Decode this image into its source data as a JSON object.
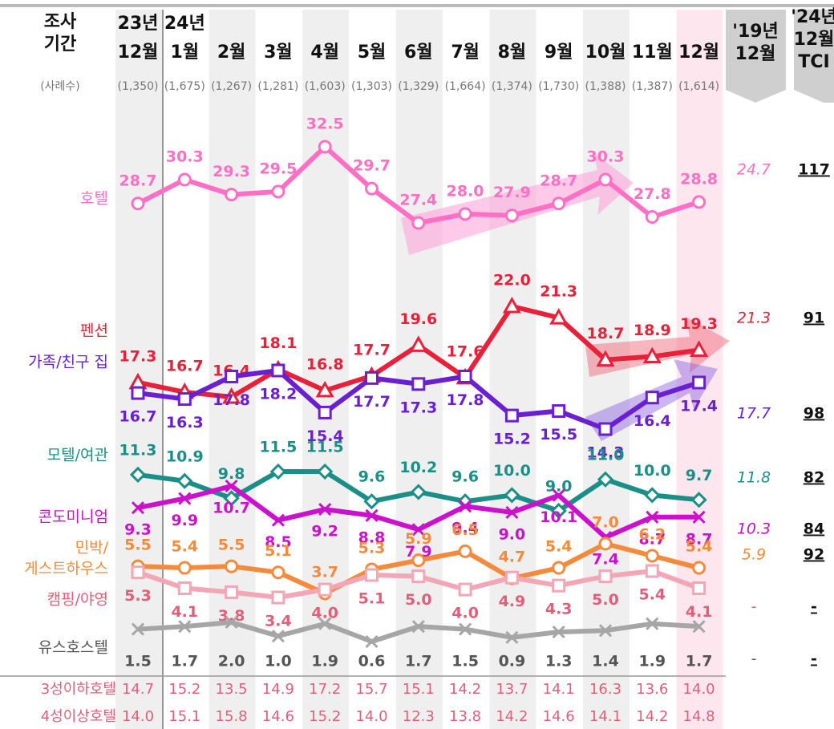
{
  "chart_data": {
    "type": "line",
    "header": "조사\n기간",
    "sample_label": "(사례수)",
    "categories": [
      "23년\n12월",
      "24년\n1월",
      "2월",
      "3월",
      "4월",
      "5월",
      "6월",
      "7월",
      "8월",
      "9월",
      "10월",
      "11월",
      "12월"
    ],
    "sample_sizes": [
      "(1,350)",
      "(1,675)",
      "(1,267)",
      "(1,281)",
      "(1,603)",
      "(1,303)",
      "(1,329)",
      "(1,664)",
      "(1,374)",
      "(1,730)",
      "(1,388)",
      "(1,387)",
      "(1,614)"
    ],
    "compare_headers": [
      "'19년\n12월",
      "'24년\n12월\nTCI"
    ],
    "series": [
      {
        "name": "호텔",
        "color": "#ff6fc4",
        "marker": "circle",
        "values": [
          28.7,
          30.3,
          29.3,
          29.5,
          32.5,
          29.7,
          27.4,
          28.0,
          27.9,
          28.7,
          30.3,
          27.8,
          28.8
        ],
        "value_labels": [
          "28.7",
          "30.3",
          "29.3",
          "29.5",
          "32.5",
          "29.7",
          "27.4",
          "28.0",
          "27.9",
          "28.7",
          "30.3",
          "27.8",
          "28.8"
        ],
        "prev": 24.7,
        "tci": 117
      },
      {
        "name": "펜션",
        "color": "#e8203a",
        "marker": "triangle",
        "values": [
          17.3,
          16.7,
          16.4,
          18.1,
          16.8,
          17.7,
          19.6,
          17.6,
          22.0,
          21.3,
          18.7,
          18.9,
          19.3
        ],
        "value_labels": [
          "17.3",
          "16.7",
          "16.4",
          "18.1",
          "16.8",
          "17.7",
          "19.6",
          "17.6",
          "22.0",
          "21.3",
          "18.7",
          "18.9",
          "19.3"
        ],
        "prev": 21.3,
        "tci": 91
      },
      {
        "name": "가족/친구 집",
        "color": "#6a1fd0",
        "marker": "square",
        "values": [
          16.7,
          16.3,
          17.8,
          18.2,
          15.4,
          17.7,
          17.3,
          17.8,
          15.2,
          15.5,
          14.3,
          16.4,
          17.4
        ],
        "value_labels": [
          "16.7",
          "16.3",
          "17.8",
          "18.2",
          "15.4",
          "17.7",
          "17.3",
          "17.8",
          "15.2",
          "15.5",
          "14.3",
          "16.4",
          "17.4"
        ],
        "prev": 17.7,
        "tci": 98
      },
      {
        "name": "모텔/여관",
        "color": "#1a8f88",
        "marker": "diamond",
        "values": [
          11.3,
          10.9,
          9.8,
          11.5,
          11.5,
          9.6,
          10.2,
          9.6,
          10.0,
          9.0,
          11.0,
          10.0,
          9.7
        ],
        "value_labels": [
          "11.3",
          "10.9",
          "9.8",
          "11.5",
          "11.5",
          "9.6",
          "10.2",
          "9.6",
          "10.0",
          "9.0",
          "11.0",
          "10.0",
          "9.7"
        ],
        "prev": 11.8,
        "tci": 82
      },
      {
        "name": "콘도미니엄",
        "color": "#cc11cc",
        "marker": "x",
        "values": [
          9.3,
          9.9,
          10.7,
          8.5,
          9.2,
          8.8,
          7.9,
          9.4,
          9.0,
          10.1,
          7.4,
          8.7,
          8.7
        ],
        "value_labels": [
          "9.3",
          "9.9",
          "10.7",
          "8.5",
          "9.2",
          "8.8",
          "7.9",
          "9.4",
          "9.0",
          "10.1",
          "7.4",
          "8.7",
          "8.7"
        ],
        "prev": 10.3,
        "tci": 84
      },
      {
        "name": "민박/\n게스트하우스",
        "color": "#f58a3c",
        "marker": "circle",
        "values": [
          5.5,
          5.4,
          5.5,
          5.1,
          3.7,
          5.3,
          5.9,
          6.5,
          4.7,
          5.4,
          7.0,
          6.2,
          5.4
        ],
        "value_labels": [
          "5.5",
          "5.4",
          "5.5",
          "5.1",
          "3.7",
          "5.3",
          "5.9",
          "6.5",
          "4.7",
          "5.4",
          "7.0",
          "6.2",
          "5.4"
        ],
        "prev": 5.9,
        "tci": 92
      },
      {
        "name": "캠핑/야영",
        "color": "#f2a6b6",
        "label_color": "#e0607a",
        "marker": "square",
        "values": [
          5.3,
          4.1,
          3.8,
          3.4,
          4.0,
          5.1,
          5.0,
          4.0,
          4.9,
          4.3,
          5.0,
          5.4,
          4.1
        ],
        "value_labels": [
          "5.3",
          "4.1",
          "3.8",
          "3.4",
          "4.0",
          "5.1",
          "5.0",
          "4.0",
          "4.9",
          "4.3",
          "5.0",
          "5.4",
          "4.1"
        ],
        "prev": "-",
        "tci": "-"
      },
      {
        "name": "유스호스텔",
        "color": "#a6a6a6",
        "label_color": "#555555",
        "marker": "x",
        "values": [
          1.5,
          1.7,
          2.0,
          1.0,
          1.9,
          0.6,
          1.7,
          1.5,
          0.9,
          1.3,
          1.4,
          1.9,
          1.7
        ],
        "value_labels": [
          "1.5",
          "1.7",
          "2.0",
          "1.0",
          "1.9",
          "0.6",
          "1.7",
          "1.5",
          "0.9",
          "1.3",
          "1.4",
          "1.9",
          "1.7"
        ],
        "prev": "-",
        "tci": "-"
      }
    ],
    "rows": [
      {
        "name": "3성이하호텔",
        "values": [
          14.7,
          15.2,
          13.5,
          14.9,
          17.2,
          15.7,
          15.1,
          14.2,
          13.7,
          14.1,
          16.3,
          13.6,
          14.0
        ],
        "value_labels": [
          "14.7",
          "15.2",
          "13.5",
          "14.9",
          "17.2",
          "15.7",
          "15.1",
          "14.2",
          "13.7",
          "14.1",
          "16.3",
          "13.6",
          "14.0"
        ]
      },
      {
        "name": "4성이상호텔",
        "values": [
          14.0,
          15.1,
          15.8,
          14.6,
          15.2,
          14.0,
          12.3,
          13.8,
          14.2,
          14.6,
          14.1,
          14.2,
          14.8
        ],
        "value_labels": [
          "14.0",
          "15.1",
          "15.8",
          "14.6",
          "15.2",
          "14.0",
          "12.3",
          "13.8",
          "14.2",
          "14.6",
          "14.1",
          "14.2",
          "14.8"
        ]
      }
    ]
  }
}
